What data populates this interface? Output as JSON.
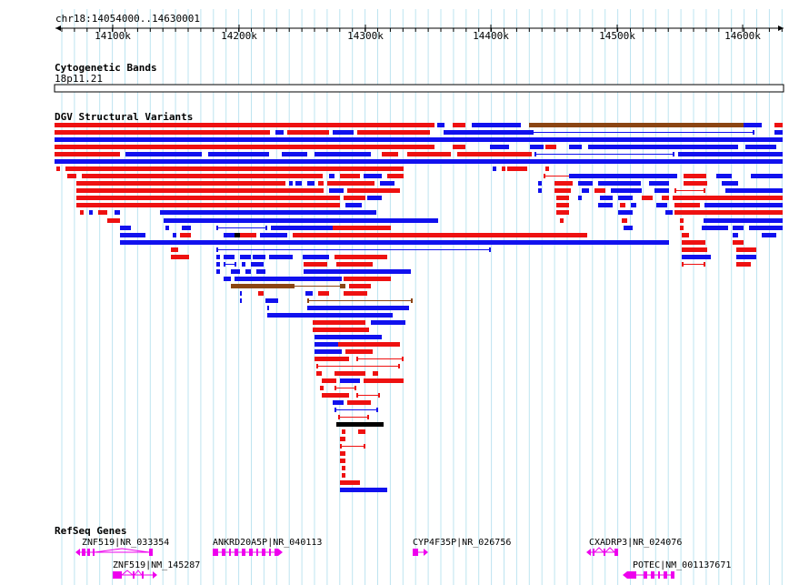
{
  "location": "chr18:14054000..14630001",
  "ruler": {
    "ticks": [
      "14100k",
      "14200k",
      "14300k",
      "14400k",
      "14500k",
      "14600k"
    ]
  },
  "tracks": {
    "cytoband": {
      "title": "Cytogenetic Bands",
      "band": "18p11.21"
    },
    "dgv": {
      "title": "DGV Structural Variants"
    },
    "refseq": {
      "title": "RefSeq Genes",
      "genes": [
        {
          "label": "ZNF519|NR_033354",
          "strand": "-"
        },
        {
          "label": "ZNF519|NM_145287",
          "strand": "+"
        },
        {
          "label": "ANKRD20A5P|NR_040113",
          "strand": "+"
        },
        {
          "label": "CYP4F35P|NR_026756",
          "strand": "+"
        },
        {
          "label": "CXADRP3|NR_024076",
          "strand": "-"
        },
        {
          "label": "POTEC|NM_001137671",
          "strand": "-"
        }
      ]
    }
  },
  "colors": {
    "gain": "#ee1111",
    "loss": "#1111ee",
    "inversion": "#8b4513",
    "complex": "#000000",
    "gene": "#ee00ee",
    "grid": "#bde4f0"
  }
}
